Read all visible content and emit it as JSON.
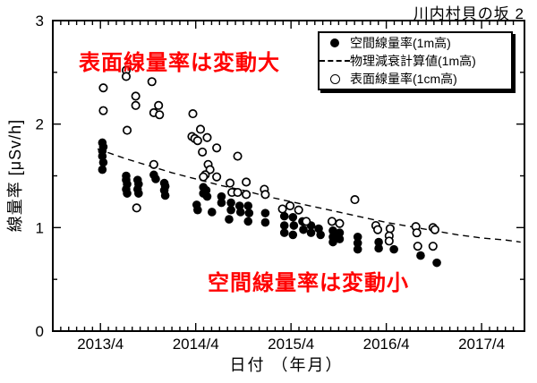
{
  "title": "川内村貝の坂 2",
  "axes": {
    "x_title": "日付 （年月）",
    "y_title": "線量率 [μSv/h]"
  },
  "annotations": {
    "surface_note": "表面線量率は変動大",
    "space_note": "空間線量率は変動小",
    "color": "#ff0000"
  },
  "legend": {
    "items": [
      {
        "marker": "filled-circle",
        "label": "空間線量率(1m高)"
      },
      {
        "marker": "dashed-line",
        "label": "物理減衰計算値(1m高)"
      },
      {
        "marker": "open-circle",
        "label": "表面線量率(1cm高)"
      }
    ]
  },
  "colors": {
    "data": "#000000",
    "annotation": "#ff0000",
    "background": "#ffffff"
  },
  "chart_data": {
    "type": "scatter",
    "title": "川内村貝の坂 2",
    "xlabel": "日付 （年月）",
    "ylabel": "線量率 [μSv/h]",
    "xlim": [
      2012.75,
      2017.7
    ],
    "ylim": [
      0,
      3
    ],
    "grid": false,
    "legend_position": "top-right",
    "x_ticks": [
      {
        "value": 2013.25,
        "label": "2013/4"
      },
      {
        "value": 2014.25,
        "label": "2014/4"
      },
      {
        "value": 2015.25,
        "label": "2015/4"
      },
      {
        "value": 2016.25,
        "label": "2016/4"
      },
      {
        "value": 2017.25,
        "label": "2017/4"
      }
    ],
    "y_ticks": [
      {
        "value": 0,
        "label": "0"
      },
      {
        "value": 1,
        "label": "1"
      },
      {
        "value": 2,
        "label": "2"
      },
      {
        "value": 3,
        "label": "3"
      }
    ],
    "x_minor_step": 0.0833,
    "y_minor_step": 0.5,
    "series": [
      {
        "name": "空間線量率(1m高)",
        "type": "scatter",
        "marker": "filled-circle",
        "color": "#000000",
        "points": [
          [
            2013.27,
            1.82
          ],
          [
            2013.28,
            1.78
          ],
          [
            2013.27,
            1.74
          ],
          [
            2013.27,
            1.69
          ],
          [
            2013.28,
            1.63
          ],
          [
            2013.27,
            1.56
          ],
          [
            2013.52,
            1.5
          ],
          [
            2013.52,
            1.46
          ],
          [
            2013.53,
            1.42
          ],
          [
            2013.52,
            1.37
          ],
          [
            2013.53,
            1.33
          ],
          [
            2013.64,
            1.46
          ],
          [
            2013.65,
            1.42
          ],
          [
            2013.64,
            1.37
          ],
          [
            2013.65,
            1.33
          ],
          [
            2013.81,
            1.51
          ],
          [
            2013.83,
            1.47
          ],
          [
            2013.92,
            1.43
          ],
          [
            2013.93,
            1.4
          ],
          [
            2013.92,
            1.36
          ],
          [
            2013.93,
            1.31
          ],
          [
            2014.26,
            1.22
          ],
          [
            2014.27,
            1.17
          ],
          [
            2014.33,
            1.39
          ],
          [
            2014.36,
            1.36
          ],
          [
            2014.33,
            1.33
          ],
          [
            2014.37,
            1.3
          ],
          [
            2014.42,
            1.15
          ],
          [
            2014.52,
            1.3
          ],
          [
            2014.52,
            1.24
          ],
          [
            2014.62,
            1.24
          ],
          [
            2014.62,
            1.17
          ],
          [
            2014.6,
            1.08
          ],
          [
            2014.71,
            1.21
          ],
          [
            2014.72,
            1.15
          ],
          [
            2014.8,
            1.21
          ],
          [
            2014.81,
            1.14
          ],
          [
            2014.8,
            1.06
          ],
          [
            2014.98,
            1.14
          ],
          [
            2014.98,
            1.05
          ],
          [
            2015.18,
            1.11
          ],
          [
            2015.18,
            1.02
          ],
          [
            2015.18,
            0.95
          ],
          [
            2015.27,
            1.1
          ],
          [
            2015.28,
            1.02
          ],
          [
            2015.27,
            0.93
          ],
          [
            2015.37,
            1.06
          ],
          [
            2015.38,
            0.98
          ],
          [
            2015.46,
            1.02
          ],
          [
            2015.46,
            0.95
          ],
          [
            2015.54,
            0.99
          ],
          [
            2015.56,
            0.93
          ],
          [
            2015.69,
            0.97
          ],
          [
            2015.69,
            0.91
          ],
          [
            2015.69,
            0.86
          ],
          [
            2015.76,
            0.95
          ],
          [
            2015.76,
            0.89
          ],
          [
            2015.95,
            0.91
          ],
          [
            2015.95,
            0.85
          ],
          [
            2015.95,
            0.79
          ],
          [
            2016.17,
            0.86
          ],
          [
            2016.17,
            0.8
          ],
          [
            2016.33,
            0.79
          ],
          [
            2016.61,
            0.73
          ],
          [
            2016.78,
            0.66
          ]
        ]
      },
      {
        "name": "物理減衰計算値(1m高)",
        "type": "line",
        "style": "dashed",
        "color": "#000000",
        "points": [
          [
            2013.22,
            1.76
          ],
          [
            2013.5,
            1.67
          ],
          [
            2013.75,
            1.6
          ],
          [
            2014.0,
            1.53
          ],
          [
            2014.25,
            1.47
          ],
          [
            2014.5,
            1.41
          ],
          [
            2014.75,
            1.36
          ],
          [
            2015.0,
            1.3
          ],
          [
            2015.25,
            1.25
          ],
          [
            2015.5,
            1.2
          ],
          [
            2015.75,
            1.15
          ],
          [
            2016.0,
            1.1
          ],
          [
            2016.25,
            1.05
          ],
          [
            2016.5,
            1.01
          ],
          [
            2016.75,
            0.97
          ],
          [
            2017.0,
            0.93
          ],
          [
            2017.25,
            0.9
          ],
          [
            2017.5,
            0.88
          ],
          [
            2017.66,
            0.86
          ]
        ]
      },
      {
        "name": "表面線量率(1cm高)",
        "type": "scatter",
        "marker": "open-circle",
        "color": "#000000",
        "points": [
          [
            2013.28,
            2.35
          ],
          [
            2013.28,
            2.13
          ],
          [
            2013.52,
            2.52
          ],
          [
            2013.52,
            2.46
          ],
          [
            2013.53,
            1.94
          ],
          [
            2013.62,
            2.27
          ],
          [
            2013.62,
            2.18
          ],
          [
            2013.63,
            1.19
          ],
          [
            2013.79,
            2.41
          ],
          [
            2013.86,
            2.18
          ],
          [
            2013.81,
            2.11
          ],
          [
            2013.87,
            2.09
          ],
          [
            2013.81,
            1.61
          ],
          [
            2014.22,
            2.1
          ],
          [
            2014.3,
            1.95
          ],
          [
            2014.21,
            1.88
          ],
          [
            2014.24,
            1.86
          ],
          [
            2014.27,
            1.84
          ],
          [
            2014.37,
            1.87
          ],
          [
            2014.32,
            1.73
          ],
          [
            2014.47,
            1.77
          ],
          [
            2014.38,
            1.61
          ],
          [
            2014.4,
            1.56
          ],
          [
            2014.35,
            1.51
          ],
          [
            2014.33,
            1.49
          ],
          [
            2014.47,
            1.49
          ],
          [
            2014.61,
            1.43
          ],
          [
            2014.63,
            1.34
          ],
          [
            2014.69,
            1.69
          ],
          [
            2014.69,
            1.34
          ],
          [
            2014.78,
            1.44
          ],
          [
            2014.78,
            1.32
          ],
          [
            2014.97,
            1.37
          ],
          [
            2014.98,
            1.32
          ],
          [
            2015.16,
            1.18
          ],
          [
            2015.24,
            1.21
          ],
          [
            2015.33,
            1.17
          ],
          [
            2015.41,
            1.06
          ],
          [
            2015.68,
            1.06
          ],
          [
            2015.76,
            1.04
          ],
          [
            2015.92,
            1.27
          ],
          [
            2016.14,
            1.02
          ],
          [
            2016.16,
            0.98
          ],
          [
            2016.29,
            0.99
          ],
          [
            2016.28,
            0.92
          ],
          [
            2016.28,
            0.87
          ],
          [
            2016.56,
            1.01
          ],
          [
            2016.57,
            0.95
          ],
          [
            2016.58,
            0.82
          ],
          [
            2016.74,
            1.0
          ],
          [
            2016.76,
            0.98
          ],
          [
            2016.74,
            0.82
          ]
        ]
      }
    ]
  }
}
